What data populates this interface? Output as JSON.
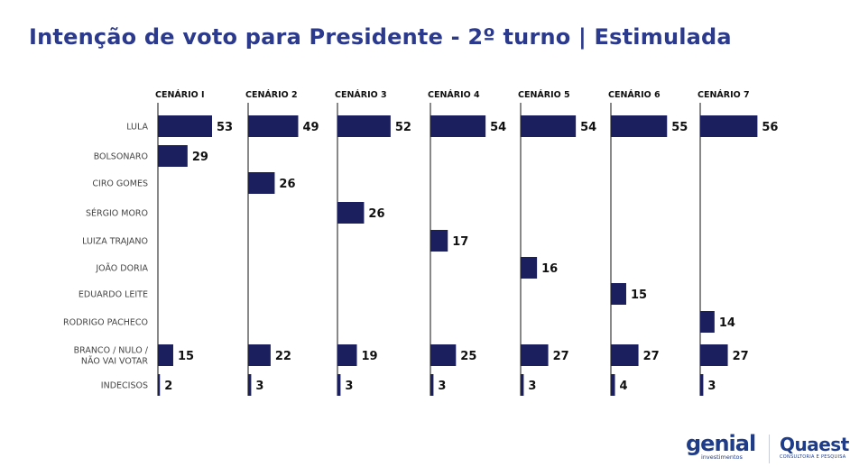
{
  "title": "Intenção de voto para Presidente - 2º turno | Estimulada",
  "colors": {
    "bar": "#1b1f5e",
    "title": "#2b3a8c",
    "label": "#444444",
    "value": "#111111",
    "axis": "#111111"
  },
  "chart_data": {
    "type": "bar",
    "orientation": "horizontal",
    "panels": [
      "CENÁRIO I",
      "CENÁRIO 2",
      "CENÁRIO 3",
      "CENÁRIO 4",
      "CENÁRIO 5",
      "CENÁRIO 6",
      "CENÁRIO 7"
    ],
    "categories": [
      "LULA",
      "BOLSONARO",
      "CIRO GOMES",
      "SÉRGIO MORO",
      "LUIZA TRAJANO",
      "JOÃO DORIA",
      "EDUARDO LEITE",
      "RODRIGO PACHECO",
      "BRANCO / NULO / NÃO VAI VOTAR",
      "INDECISOS"
    ],
    "category_lines": [
      [
        "LULA"
      ],
      [
        "BOLSONARO"
      ],
      [
        "CIRO GOMES"
      ],
      [
        "SÉRGIO MORO"
      ],
      [
        "LUIZA TRAJANO"
      ],
      [
        "JOÃO DORIA"
      ],
      [
        "EDUARDO LEITE"
      ],
      [
        "RODRIGO PACHECO"
      ],
      [
        "BRANCO / NULO /",
        "NÃO VAI VOTAR"
      ],
      [
        "INDECISOS"
      ]
    ],
    "values": [
      [
        53,
        49,
        52,
        54,
        54,
        55,
        56
      ],
      [
        29,
        null,
        null,
        null,
        null,
        null,
        null
      ],
      [
        null,
        26,
        null,
        null,
        null,
        null,
        null
      ],
      [
        null,
        null,
        26,
        null,
        null,
        null,
        null
      ],
      [
        null,
        null,
        null,
        17,
        null,
        null,
        null
      ],
      [
        null,
        null,
        null,
        null,
        16,
        null,
        null
      ],
      [
        null,
        null,
        null,
        null,
        null,
        15,
        null
      ],
      [
        null,
        null,
        null,
        null,
        null,
        null,
        14
      ],
      [
        15,
        22,
        19,
        25,
        27,
        27,
        27
      ],
      [
        2,
        3,
        3,
        3,
        3,
        4,
        3
      ]
    ],
    "units": "%"
  },
  "logos": {
    "genial": {
      "word": "genial",
      "sub": "investimentos"
    },
    "quaest": {
      "word": "Quaest",
      "sub": "CONSULTORIA E PESQUISA"
    }
  }
}
